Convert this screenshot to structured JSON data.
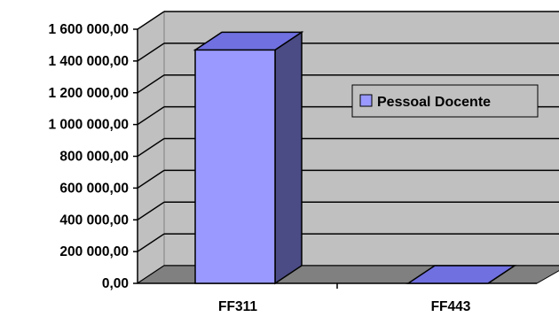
{
  "chart_data": {
    "type": "bar",
    "categories": [
      "FF311",
      "FF443"
    ],
    "series": [
      {
        "name": "Pessoal Docente",
        "values": [
          1470000,
          0
        ]
      }
    ],
    "ylim": [
      0,
      1600000
    ],
    "yticks": [
      0,
      200000,
      400000,
      600000,
      800000,
      1000000,
      1200000,
      1400000,
      1600000
    ],
    "ytick_labels": [
      "0,00",
      "200 000,00",
      "400 000,00",
      "600 000,00",
      "800 000,00",
      "1 000 000,00",
      "1 200 000,00",
      "1 400 000,00",
      "1 600 000,00"
    ],
    "grid": true,
    "legend_position": "right",
    "three_d": true,
    "colors": {
      "bar_front": "#9999ff",
      "bar_top": "#7070e0",
      "bar_side": "#4b4b85",
      "wall": "#c0c0c0",
      "floor": "#808080",
      "gridline": "#000000"
    }
  }
}
